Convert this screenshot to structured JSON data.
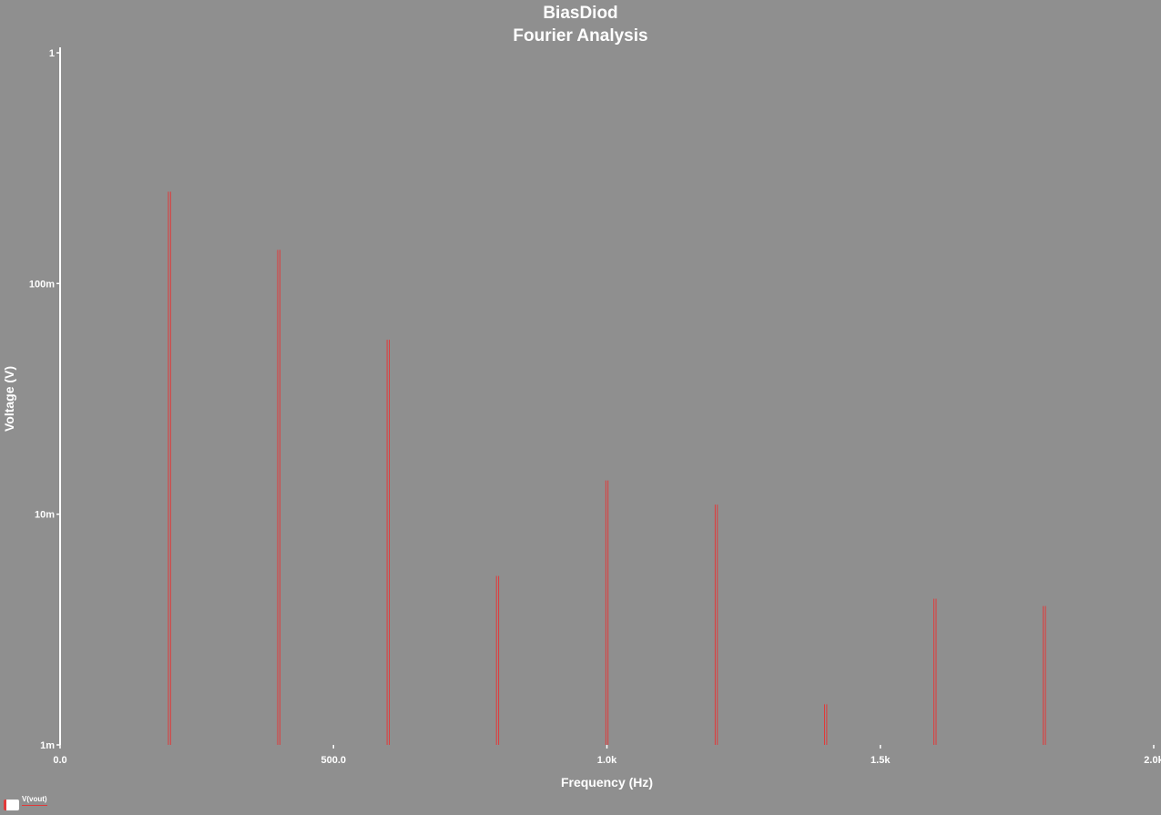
{
  "chart_data": {
    "type": "bar",
    "title": "BiasDiod",
    "subtitle": "Fourier Analysis",
    "xlabel": "Frequency (Hz)",
    "ylabel": "Voltage (V)",
    "x_scale": "linear",
    "y_scale": "log",
    "xlim": [
      0,
      2000
    ],
    "ylim": [
      0.001,
      1
    ],
    "x_ticks": [
      {
        "value": 0,
        "label": "0.0"
      },
      {
        "value": 500,
        "label": "500.0"
      },
      {
        "value": 1000,
        "label": "1.0k"
      },
      {
        "value": 1500,
        "label": "1.5k"
      },
      {
        "value": 2000,
        "label": "2.0k"
      }
    ],
    "y_ticks": [
      {
        "value": 0.001,
        "label": "1m"
      },
      {
        "value": 0.01,
        "label": "10m"
      },
      {
        "value": 0.1,
        "label": "100m"
      },
      {
        "value": 1,
        "label": "1"
      }
    ],
    "grid": false,
    "legend_position": "bottom-left",
    "series": [
      {
        "name": "V(vout)",
        "color": "#e03a3a",
        "x": [
          200,
          400,
          600,
          800,
          1000,
          1200,
          1400,
          1600,
          1800
        ],
        "values": [
          0.25,
          0.14,
          0.057,
          0.0054,
          0.014,
          0.011,
          0.0015,
          0.0043,
          0.004
        ]
      }
    ]
  }
}
